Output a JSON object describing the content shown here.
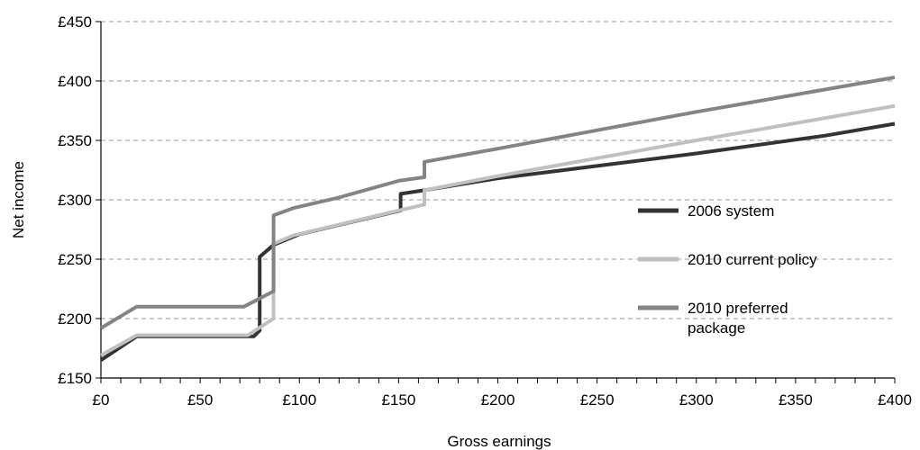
{
  "chart_data": {
    "type": "line",
    "title": "",
    "xlabel": "Gross earnings",
    "ylabel": "Net income",
    "xlim": [
      0,
      400
    ],
    "ylim": [
      150,
      450
    ],
    "x_ticks": [
      0,
      50,
      100,
      150,
      200,
      250,
      300,
      350,
      400
    ],
    "x_tick_labels": [
      "£0",
      "£50",
      "£100",
      "£150",
      "£200",
      "£250",
      "£300",
      "£350",
      "£400"
    ],
    "y_ticks": [
      150,
      200,
      250,
      300,
      350,
      400,
      450
    ],
    "y_tick_labels": [
      "£150",
      "£200",
      "£250",
      "£300",
      "£350",
      "£400",
      "£450"
    ],
    "grid": "horizontal dashed",
    "legend_position": "right",
    "series": [
      {
        "name": "2006 system",
        "color": "#333333",
        "points": [
          [
            0,
            165
          ],
          [
            18,
            185
          ],
          [
            77,
            185
          ],
          [
            80,
            190
          ],
          [
            80,
            252
          ],
          [
            87,
            262
          ],
          [
            100,
            271
          ],
          [
            151,
            291
          ],
          [
            151,
            305
          ],
          [
            163,
            308
          ],
          [
            200,
            318
          ],
          [
            300,
            339
          ],
          [
            365,
            354
          ],
          [
            400,
            364
          ]
        ]
      },
      {
        "name": "2010 current policy",
        "color": "#c0c0c0",
        "points": [
          [
            0,
            169
          ],
          [
            18,
            186
          ],
          [
            74,
            186
          ],
          [
            87,
            200
          ],
          [
            87,
            263
          ],
          [
            97,
            270
          ],
          [
            150,
            291
          ],
          [
            163,
            296
          ],
          [
            163,
            308
          ],
          [
            200,
            320
          ],
          [
            300,
            350
          ],
          [
            400,
            379
          ]
        ]
      },
      {
        "name": "2010 preferred package",
        "color": "#848484",
        "points": [
          [
            0,
            192
          ],
          [
            18,
            210
          ],
          [
            72,
            210
          ],
          [
            87,
            223
          ],
          [
            87,
            287
          ],
          [
            97,
            293
          ],
          [
            120,
            302
          ],
          [
            150,
            316
          ],
          [
            163,
            319
          ],
          [
            163,
            332
          ],
          [
            200,
            343
          ],
          [
            300,
            374
          ],
          [
            400,
            403
          ]
        ]
      }
    ],
    "legend": [
      "2006 system",
      "2010 current policy",
      "2010 preferred package"
    ]
  }
}
